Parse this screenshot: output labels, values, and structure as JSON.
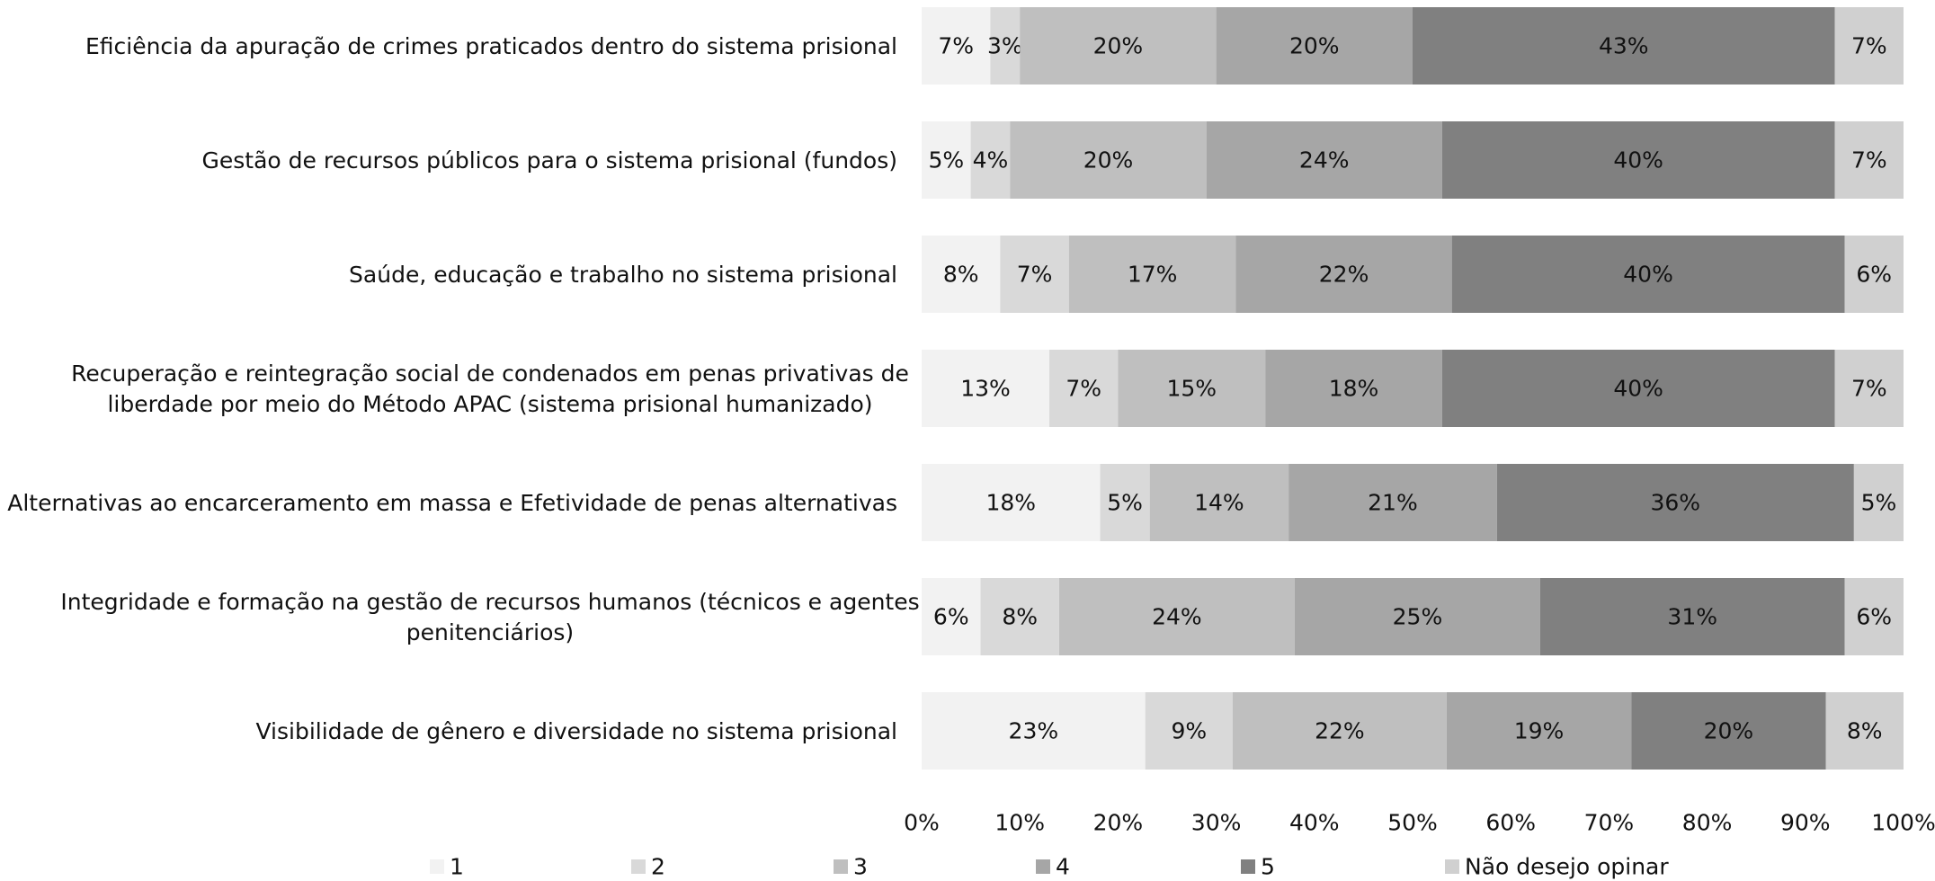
{
  "chart_data": {
    "type": "bar",
    "orientation": "horizontal",
    "stacked": true,
    "percent": true,
    "categories": [
      "Eficiência da apuração de crimes praticados dentro do sistema prisional",
      "Gestão de recursos públicos para o sistema prisional (fundos)",
      "Saúde, educação e trabalho no sistema prisional",
      "Recuperação e reintegração social de condenados em penas privativas de liberdade por meio do Método APAC (sistema prisional humanizado)",
      "Alternativas ao encarceramento em massa e Efetividade de penas alternativas",
      "Integridade e formação na gestão de recursos humanos (técnicos e agentes penitenciários)",
      "Visibilidade de gênero e diversidade no sistema prisional"
    ],
    "category_lines": [
      [
        "Eficiência da apuração de crimes praticados dentro do sistema prisional"
      ],
      [
        "Gestão de recursos públicos para o sistema prisional (fundos)"
      ],
      [
        "Saúde, educação e trabalho no sistema prisional"
      ],
      [
        "Recuperação e reintegração social de condenados em penas privativas de",
        "liberdade por meio do Método APAC (sistema prisional humanizado)"
      ],
      [
        "Alternativas ao encarceramento em massa e Efetividade de penas alternativas"
      ],
      [
        "Integridade e formação na gestão de recursos humanos (técnicos e agentes",
        "penitenciários)"
      ],
      [
        "Visibilidade de gênero e diversidade no sistema prisional"
      ]
    ],
    "series": [
      {
        "name": "1",
        "color": "#f2f2f2",
        "values": [
          7,
          5,
          8,
          13,
          18,
          6,
          23
        ]
      },
      {
        "name": "2",
        "color": "#d9d9d9",
        "values": [
          3,
          4,
          7,
          7,
          5,
          8,
          9
        ]
      },
      {
        "name": "3",
        "color": "#bfbfbf",
        "values": [
          20,
          20,
          17,
          15,
          14,
          24,
          22
        ]
      },
      {
        "name": "4",
        "color": "#a6a6a6",
        "values": [
          20,
          24,
          22,
          18,
          21,
          25,
          19
        ]
      },
      {
        "name": "5",
        "color": "#808080",
        "values": [
          43,
          40,
          40,
          40,
          36,
          31,
          20
        ]
      },
      {
        "name": "Não desejo opinar",
        "color": "#d0d0d0",
        "values": [
          7,
          7,
          6,
          7,
          5,
          6,
          8
        ]
      }
    ],
    "xlim": [
      0,
      100
    ],
    "xticks": [
      0,
      10,
      20,
      30,
      40,
      50,
      60,
      70,
      80,
      90,
      100
    ],
    "xtick_labels": [
      "0%",
      "10%",
      "20%",
      "30%",
      "40%",
      "50%",
      "60%",
      "70%",
      "80%",
      "90%",
      "100%"
    ],
    "title": "",
    "xlabel": "",
    "ylabel": "",
    "grid": false,
    "legend_position": "bottom"
  }
}
